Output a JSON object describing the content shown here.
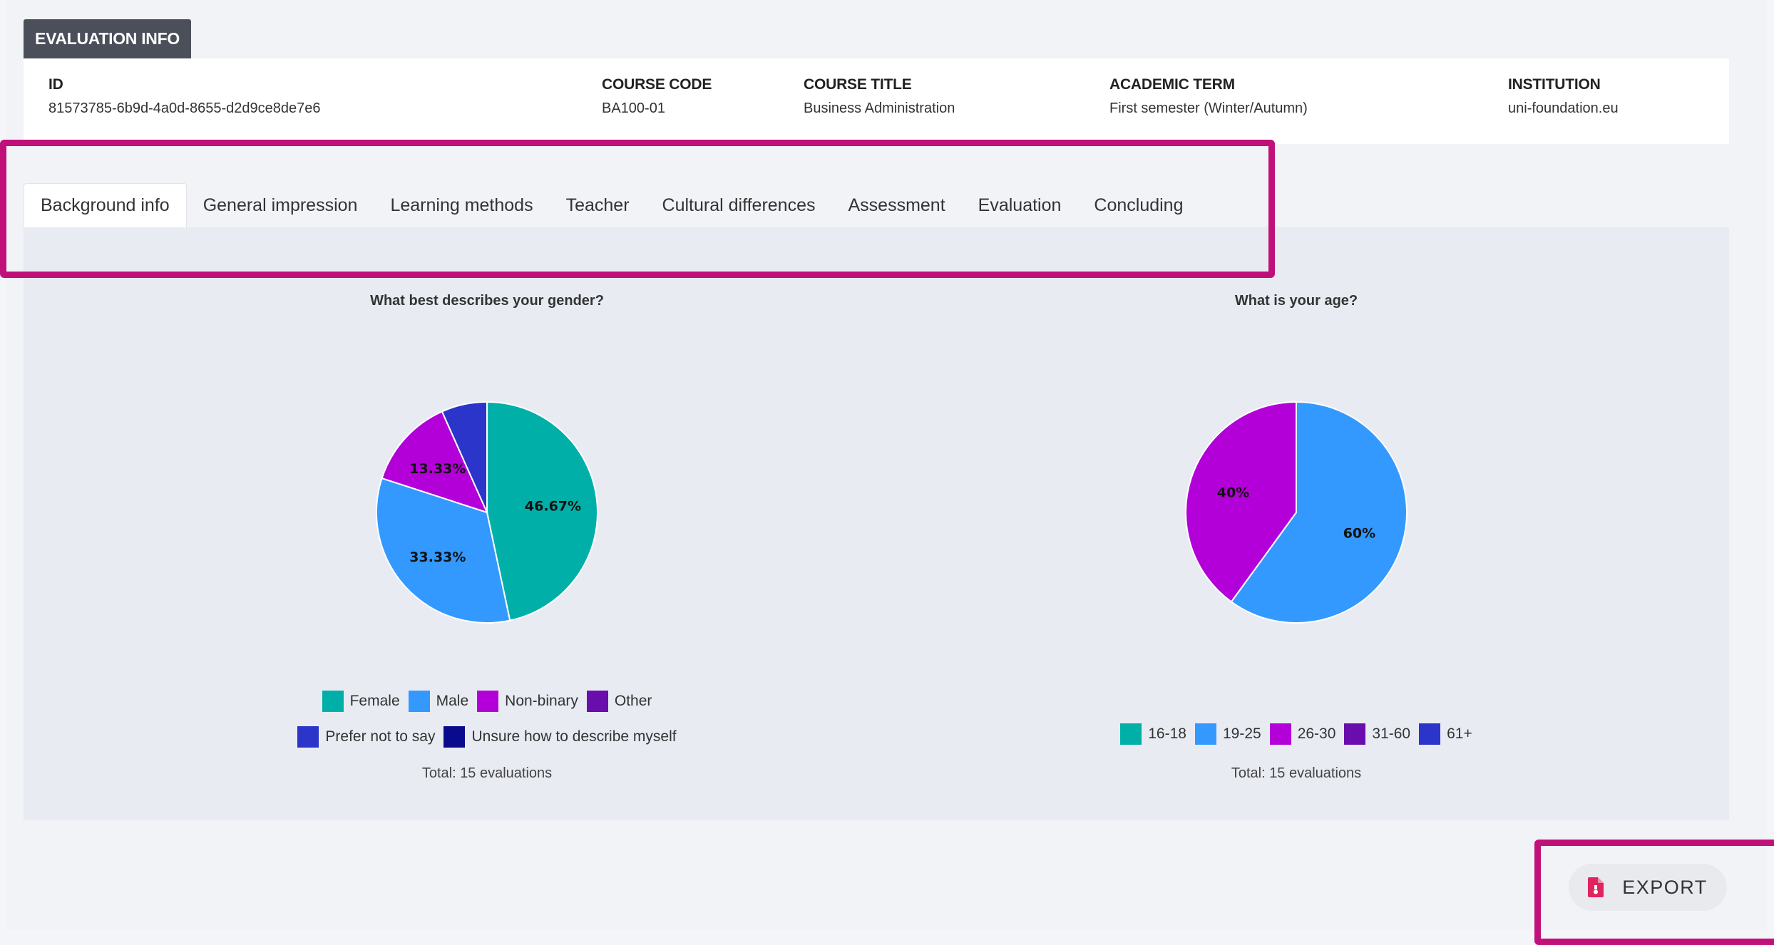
{
  "info": {
    "header": "EVALUATION INFO",
    "fields": [
      {
        "label": "ID",
        "value": "81573785-6b9d-4a0d-8655-d2d9ce8de7e6"
      },
      {
        "label": "COURSE CODE",
        "value": "BA100-01"
      },
      {
        "label": "COURSE TITLE",
        "value": "Business Administration"
      },
      {
        "label": "ACADEMIC TERM",
        "value": "First semester (Winter/Autumn)"
      },
      {
        "label": "INSTITUTION",
        "value": "uni-foundation.eu"
      }
    ]
  },
  "tabs": [
    {
      "label": "Background info",
      "active": true
    },
    {
      "label": "General impression"
    },
    {
      "label": "Learning methods"
    },
    {
      "label": "Teacher"
    },
    {
      "label": "Cultural differences"
    },
    {
      "label": "Assessment"
    },
    {
      "label": "Evaluation"
    },
    {
      "label": "Concluding"
    }
  ],
  "export": {
    "label": "EXPORT",
    "icon": "file-export-icon"
  },
  "colors": {
    "highlight": "#c0107a",
    "accent_icon": "#e0245e"
  },
  "chart_data": [
    {
      "type": "pie",
      "title": "What best describes your gender?",
      "categories": [
        "Female",
        "Male",
        "Non-binary",
        "Other",
        "Prefer not to say",
        "Unsure how to describe myself"
      ],
      "values": [
        46.67,
        33.33,
        13.33,
        0,
        6.67,
        0
      ],
      "labels": [
        "46.67%",
        "33.33%",
        "13.33%",
        "",
        "",
        ""
      ],
      "colors": [
        "#00b0a8",
        "#3399ff",
        "#b300d9",
        "#6a0dad",
        "#2b35c9",
        "#0a0a8c"
      ],
      "legend_rows": [
        [
          0,
          1,
          2,
          3
        ],
        [
          4,
          5
        ]
      ],
      "total": "Total: 15 evaluations"
    },
    {
      "type": "pie",
      "title": "What is your age?",
      "categories": [
        "16-18",
        "19-25",
        "26-30",
        "31-60",
        "61+"
      ],
      "values": [
        0,
        60,
        40,
        0,
        0
      ],
      "labels": [
        "",
        "60%",
        "40%",
        "",
        ""
      ],
      "colors": [
        "#00b0a8",
        "#3399ff",
        "#b300d9",
        "#6a0dad",
        "#2b35c9"
      ],
      "legend_rows": [
        [
          0,
          1,
          2,
          3,
          4
        ]
      ],
      "total": "Total: 15 evaluations"
    }
  ]
}
